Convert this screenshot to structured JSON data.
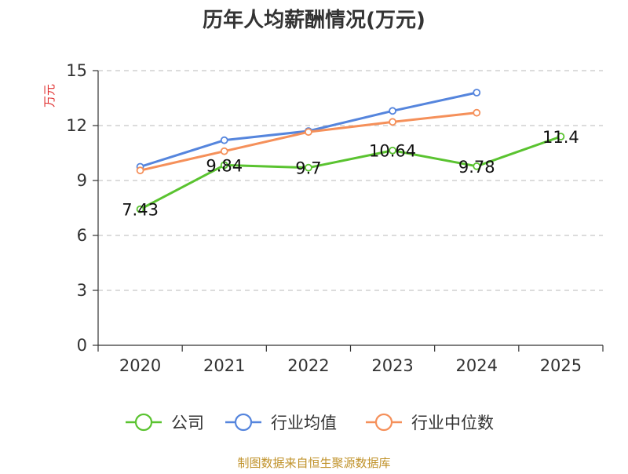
{
  "chart_data": {
    "type": "line",
    "title": "历年人均薪酬情况(万元)",
    "ylabel": "万元",
    "xlabel": "",
    "ylim": [
      0,
      15
    ],
    "yticks": [
      0,
      3,
      6,
      9,
      12,
      15
    ],
    "categories": [
      "2020",
      "2021",
      "2022",
      "2023",
      "2024",
      "2025"
    ],
    "grid": true,
    "legend_position": "bottom",
    "series": [
      {
        "name": "公司",
        "color": "#5ac330",
        "values": [
          7.43,
          9.84,
          9.7,
          10.64,
          9.78,
          11.4
        ],
        "labels": [
          "7.43",
          "9.84",
          "9.7",
          "10.64",
          "9.78",
          "11.4"
        ]
      },
      {
        "name": "行业均值",
        "color": "#5585dd",
        "values": [
          9.75,
          11.2,
          11.7,
          12.8,
          13.8,
          null
        ]
      },
      {
        "name": "行业中位数",
        "color": "#f5905a",
        "values": [
          9.55,
          10.6,
          11.65,
          12.2,
          12.7,
          null
        ]
      }
    ],
    "source": "制图数据来自恒生聚源数据库"
  }
}
